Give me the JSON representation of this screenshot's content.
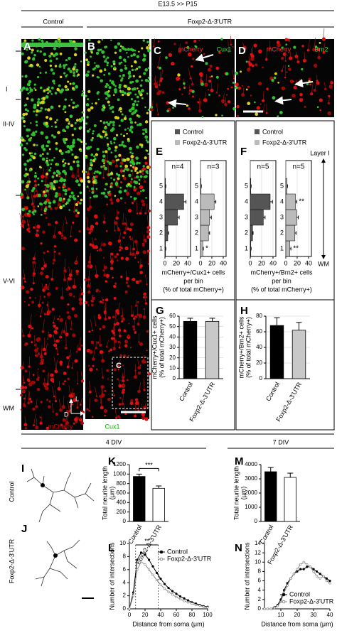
{
  "header": {
    "title": "E13.5 >> P15",
    "groups": [
      "Control",
      "Foxp2-Δ-3'UTR"
    ]
  },
  "panel_letters": [
    "A",
    "B",
    "C",
    "D",
    "E",
    "F",
    "G",
    "H",
    "I",
    "J",
    "K",
    "L",
    "M",
    "N"
  ],
  "layers": [
    "I",
    "II-IV",
    "V-VI",
    "WM"
  ],
  "image_labels": {
    "AB": [
      "mCherry",
      "Cux1"
    ],
    "C": [
      "mCherry",
      "Cux1"
    ],
    "D": [
      "mCherry",
      "Brn2"
    ]
  },
  "orientation": [
    "D",
    "L"
  ],
  "E": {
    "legend": [
      "Control",
      "Foxp2-Δ-3'UTR"
    ],
    "xlabel": [
      "mCherry+/Cux1+ cells",
      "per bin",
      "(% of total mCherry+)"
    ]
  },
  "F": {
    "legend": [
      "Control",
      "Foxp2-Δ-3'UTR"
    ],
    "xlabel": [
      "mCherry+/Brn2+ cells",
      "per bin",
      "(% of total mCherry+)"
    ],
    "axis_labels": [
      "Layer I",
      "WM"
    ]
  },
  "culture": {
    "groups": [
      "4 DIV",
      "7 DIV"
    ],
    "rows": [
      "Control",
      "Foxp2-Δ-3'UTR"
    ]
  },
  "chart_data": [
    {
      "type": "hbar",
      "categories": [
        "1",
        "2",
        "3",
        "4",
        "5"
      ],
      "values": [
        1,
        5,
        22,
        33,
        1
      ],
      "errors": [
        0.5,
        1.5,
        3,
        4,
        0.5
      ],
      "color": "#555555",
      "xlim": [
        0,
        45
      ],
      "xticks": [
        0,
        20,
        40
      ],
      "grid": true,
      "n": "n=4"
    },
    {
      "type": "hbar",
      "categories": [
        "1",
        "2",
        "3",
        "4",
        "5"
      ],
      "values": [
        4,
        14,
        16,
        24,
        1
      ],
      "errors": [
        1,
        2,
        3,
        3,
        0.5
      ],
      "color": "#bbbbbb",
      "xlim": [
        0,
        45
      ],
      "xticks": [
        0,
        20,
        40
      ],
      "grid": true,
      "n": "n=3",
      "annotations": [
        {
          "index": 0,
          "text": "*"
        }
      ]
    },
    {
      "type": "hbar",
      "categories": [
        "1",
        "2",
        "3",
        "4",
        "5"
      ],
      "values": [
        1,
        4,
        23,
        35,
        1
      ],
      "errors": [
        0.5,
        1,
        3,
        4,
        0.5
      ],
      "color": "#555555",
      "xlim": [
        0,
        45
      ],
      "xticks": [
        0,
        20,
        40
      ],
      "grid": true,
      "n": "n=5"
    },
    {
      "type": "hbar",
      "categories": [
        "1",
        "2",
        "3",
        "4",
        "5"
      ],
      "values": [
        7,
        16,
        19,
        17,
        2
      ],
      "errors": [
        2,
        2,
        3,
        2,
        1
      ],
      "color": "#bbbbbb",
      "xlim": [
        0,
        45
      ],
      "xticks": [
        0,
        20,
        40
      ],
      "grid": true,
      "n": "n=5",
      "annotations": [
        {
          "index": 0,
          "text": "**"
        },
        {
          "index": 3,
          "text": "**"
        }
      ]
    },
    {
      "type": "bar",
      "categories": [
        "Control",
        "Foxp2-Δ-3'UTR"
      ],
      "values": [
        55,
        55
      ],
      "errors": [
        3,
        3
      ],
      "colors": [
        "#000000",
        "#c8c8c8"
      ],
      "ylabel": [
        "mCherry+/Cux1+ cells",
        "(% of total mCherry+)"
      ],
      "ylim": [
        0,
        60
      ],
      "yticks": [
        0,
        10,
        20,
        30,
        40,
        50,
        60
      ],
      "grid": true
    },
    {
      "type": "bar",
      "categories": [
        "Control",
        "Foxp2-Δ-3'UTR"
      ],
      "values": [
        68,
        62
      ],
      "errors": [
        10,
        10
      ],
      "colors": [
        "#000000",
        "#c8c8c8"
      ],
      "ylabel": [
        "mCherry+/Brn2+ cells",
        "(% of total mCherry+)"
      ],
      "ylim": [
        0,
        80
      ],
      "yticks": [
        0,
        20,
        40,
        60,
        80
      ],
      "grid": true
    },
    {
      "type": "bar",
      "categories": [
        "Control",
        "Foxp2-Δ-3'UTR"
      ],
      "values": [
        950,
        700
      ],
      "errors": [
        50,
        50
      ],
      "colors": [
        "#000000",
        "#ffffff"
      ],
      "ylabel": [
        "Total neurite length",
        "(μm)"
      ],
      "ylim": [
        0,
        1200
      ],
      "yticks": [
        0,
        200,
        400,
        600,
        800,
        1000,
        1200
      ],
      "grid": false,
      "annotation": "***"
    },
    {
      "type": "bar",
      "categories": [
        "Control",
        "Foxp2-Δ-3'UTR"
      ],
      "values": [
        3500,
        3100
      ],
      "errors": [
        300,
        300
      ],
      "colors": [
        "#000000",
        "#ffffff"
      ],
      "ylabel": [
        "Total neurite length",
        "(μm)"
      ],
      "ylim": [
        0,
        4000
      ],
      "yticks": [
        0,
        1000,
        2000,
        3000,
        4000
      ],
      "grid": false
    },
    {
      "type": "line",
      "xlabel": "Distance from soma (μm)",
      "ylabel": "Number of intersections",
      "x": [
        0,
        5,
        10,
        15,
        20,
        25,
        30,
        35,
        40,
        45,
        50,
        55,
        60,
        65,
        70,
        75,
        80,
        85,
        90,
        95,
        100
      ],
      "series": [
        {
          "name": "Control",
          "color": "#000000",
          "marker": "filled",
          "values": [
            0,
            2.5,
            7.5,
            8.6,
            8.3,
            7.5,
            6.5,
            5.5,
            4.6,
            3.8,
            3.2,
            2.7,
            2.3,
            1.9,
            1.6,
            1.3,
            1.0,
            0.8,
            0.6,
            0.4,
            0.3
          ]
        },
        {
          "name": "Foxp2-Δ-3'UTR",
          "color": "#888888",
          "marker": "open",
          "values": [
            0,
            2,
            6,
            7.2,
            6.8,
            6.0,
            5.2,
            4.4,
            3.7,
            3.1,
            2.6,
            2.2,
            1.8,
            1.5,
            1.2,
            1.0,
            0.8,
            0.6,
            0.5,
            0.3,
            0.2
          ]
        }
      ],
      "xlim": [
        0,
        100
      ],
      "xticks": [
        0,
        20,
        40,
        60,
        80,
        100
      ],
      "ylim": [
        0,
        10
      ],
      "yticks": [
        0,
        2,
        4,
        6,
        8,
        10
      ],
      "legend": "upper right",
      "annotation": {
        "x": [
          8,
          37
        ],
        "text": "**"
      }
    },
    {
      "type": "line",
      "xlabel": "Distance from soma (μm)",
      "ylabel": "Number of intersections",
      "x": [
        0,
        2,
        4,
        6,
        8,
        10,
        12,
        14,
        16,
        18,
        20,
        22,
        24,
        26,
        28,
        30,
        32,
        34,
        36,
        38,
        40
      ],
      "series": [
        {
          "name": "Control",
          "color": "#000000",
          "marker": "filled",
          "values": [
            0,
            0,
            0,
            0.3,
            0.8,
            2,
            4,
            5.5,
            6.5,
            7.5,
            8,
            8.5,
            8.5,
            9,
            9,
            8.5,
            8,
            7.5,
            7,
            6.5,
            6
          ]
        },
        {
          "name": "Foxp2-Δ-3'UTR",
          "color": "#888888",
          "marker": "open",
          "values": [
            0,
            0,
            0,
            0.2,
            0.6,
            1.5,
            3.5,
            5,
            6.5,
            7.5,
            8.5,
            9.5,
            10,
            9.5,
            9,
            8,
            7,
            6.5,
            7,
            6,
            5.5
          ]
        }
      ],
      "xlim": [
        0,
        40
      ],
      "xticks": [
        10,
        20,
        30,
        40
      ],
      "ylim": [
        0,
        14
      ],
      "yticks": [
        0,
        2,
        4,
        6,
        8,
        10,
        12,
        14
      ],
      "legend": "lower right"
    }
  ]
}
